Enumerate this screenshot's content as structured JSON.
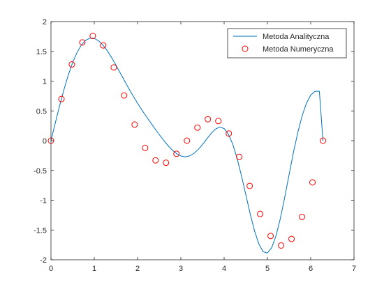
{
  "chart_data": {
    "type": "line",
    "title": "",
    "xlabel": "",
    "ylabel": "",
    "xlim": [
      0,
      7
    ],
    "ylim": [
      -2,
      2
    ],
    "x_ticks": [
      0,
      1,
      2,
      3,
      4,
      5,
      6,
      7
    ],
    "y_ticks": [
      -2,
      -1.5,
      -1,
      -0.5,
      0,
      0.5,
      1,
      1.5,
      2
    ],
    "grid": false,
    "legend_position": "top-right",
    "series": [
      {
        "name": "Metoda Analityczna",
        "style": "line",
        "color": "#0072BD",
        "x": [
          0.0,
          0.1,
          0.2,
          0.3,
          0.4,
          0.5,
          0.6,
          0.7,
          0.8,
          0.9,
          1.0,
          1.1,
          1.2,
          1.3,
          1.4,
          1.5,
          1.6,
          1.7,
          1.8,
          1.9,
          2.0,
          2.1,
          2.2,
          2.3,
          2.4,
          2.5,
          2.6,
          2.7,
          2.8,
          2.9,
          3.0,
          3.1,
          3.2,
          3.3,
          3.4,
          3.5,
          3.6,
          3.7,
          3.8,
          3.9,
          4.0,
          4.1,
          4.2,
          4.3,
          4.4,
          4.5,
          4.6,
          4.7,
          4.8,
          4.9,
          5.0,
          5.1,
          5.2,
          5.3,
          5.4,
          5.5,
          5.6,
          5.7,
          5.8,
          5.9,
          6.0,
          6.1,
          6.2,
          6.283
        ],
        "y": [
          0.0,
          0.298,
          0.588,
          0.858,
          1.102,
          1.311,
          1.479,
          1.604,
          1.685,
          1.722,
          1.718,
          1.678,
          1.607,
          1.511,
          1.397,
          1.27,
          1.137,
          1.004,
          0.873,
          0.748,
          0.63,
          0.517,
          0.409,
          0.305,
          0.203,
          0.104,
          0.009,
          -0.079,
          -0.156,
          -0.217,
          -0.256,
          -0.27,
          -0.256,
          -0.215,
          -0.15,
          -0.065,
          0.03,
          0.123,
          0.196,
          0.229,
          0.204,
          0.108,
          -0.061,
          -0.298,
          -0.588,
          -0.904,
          -1.222,
          -1.508,
          -1.731,
          -1.864,
          -1.887,
          -1.795,
          -1.594,
          -1.303,
          -0.951,
          -0.572,
          -0.202,
          0.131,
          0.412,
          0.626,
          0.765,
          0.83,
          0.829,
          0.0
        ]
      },
      {
        "name": "Metoda Numeryczna",
        "style": "markers",
        "marker": "circle",
        "color": "#FF0000",
        "x": [
          0.0,
          0.242,
          0.483,
          0.725,
          0.966,
          1.208,
          1.45,
          1.691,
          1.933,
          2.175,
          2.416,
          2.658,
          2.899,
          3.141,
          3.383,
          3.624,
          3.866,
          4.108,
          4.349,
          4.591,
          4.833,
          5.074,
          5.316,
          5.557,
          5.799,
          6.041,
          6.283
        ],
        "y": [
          0.0,
          0.7,
          1.28,
          1.65,
          1.76,
          1.6,
          1.23,
          0.76,
          0.27,
          -0.12,
          -0.33,
          -0.37,
          -0.22,
          0.0,
          0.22,
          0.36,
          0.33,
          0.12,
          -0.27,
          -0.76,
          -1.23,
          -1.6,
          -1.76,
          -1.65,
          -1.28,
          -0.7,
          0.0
        ]
      }
    ]
  }
}
